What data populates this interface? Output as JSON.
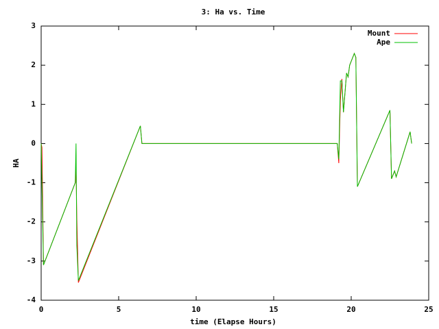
{
  "chart_data": {
    "type": "line",
    "title": "3: Ha vs. Time",
    "x_label": "time (Elapse Hours)",
    "y_label": "HA",
    "x": [
      0,
      0.05,
      0.15,
      0.25,
      2.2,
      2.25,
      2.3,
      2.4,
      6.4,
      6.5,
      19.1,
      19.2,
      19.3,
      19.4,
      19.5,
      19.7,
      19.8,
      19.9,
      20.0,
      20.2,
      20.3,
      20.4,
      22.5,
      22.6,
      22.8,
      22.9,
      23.8,
      23.9
    ],
    "series": [
      {
        "name": "Mount",
        "color": "#ff0000",
        "values": [
          0,
          -0.1,
          -3.1,
          -3.0,
          -1.0,
          -0.6,
          -1.9,
          -3.55,
          0.45,
          0,
          0,
          -0.5,
          1.1,
          1.65,
          0.8,
          1.8,
          1.7,
          2.0,
          2.1,
          2.3,
          2.2,
          -1.1,
          0.85,
          -0.9,
          -0.7,
          -0.85,
          0.3,
          0
        ]
      },
      {
        "name": "Ape",
        "color": "#00c000",
        "values": [
          0,
          -1.0,
          -3.1,
          -3.0,
          -1.0,
          0,
          -2.6,
          -3.5,
          0.45,
          0,
          0,
          -0.4,
          1.6,
          1.6,
          0.8,
          1.8,
          1.7,
          2.0,
          2.1,
          2.3,
          2.2,
          -1.1,
          0.85,
          -0.9,
          -0.7,
          -0.85,
          0.3,
          0
        ]
      }
    ],
    "xlim": [
      0,
      25
    ],
    "xticks": [
      0,
      5,
      10,
      15,
      20,
      25
    ],
    "ylim": [
      -4,
      3
    ],
    "yticks": [
      -4,
      -3,
      -2,
      -1,
      0,
      1,
      2,
      3
    ],
    "legend": "top-right"
  }
}
